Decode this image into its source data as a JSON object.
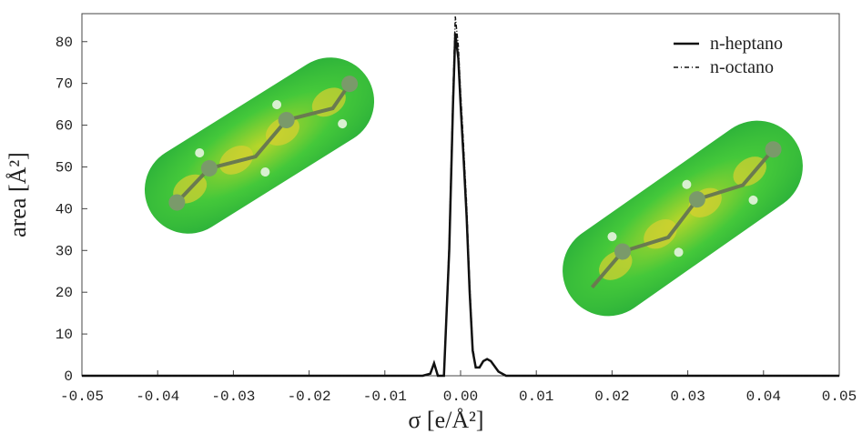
{
  "chart_data": {
    "type": "line",
    "x_label": "σ [e/Å²]",
    "y_label": "area [Å²]",
    "x": [
      -0.05,
      -0.005,
      -0.004,
      -0.0035,
      -0.003,
      -0.0022,
      -0.0015,
      -0.001,
      -0.0007,
      -0.0003,
      0,
      0.0004,
      0.0008,
      0.0012,
      0.0016,
      0.002,
      0.0025,
      0.003,
      0.0035,
      0.004,
      0.005,
      0.006,
      0.05
    ],
    "series": [
      {
        "name": "n-heptano",
        "color": "#111111",
        "linestyle": "solid",
        "values": [
          0,
          0,
          0.5,
          3,
          0,
          0,
          30,
          65,
          82,
          76,
          65,
          52,
          38,
          20,
          6,
          2,
          2,
          3.5,
          4,
          3.5,
          1,
          0,
          0
        ]
      },
      {
        "name": "n-octano",
        "color": "#111111",
        "linestyle": "dashed",
        "values": [
          0,
          0,
          0.5,
          3,
          0,
          0,
          32,
          68,
          86,
          79,
          68,
          55,
          41,
          22,
          7,
          2,
          2,
          3.5,
          4,
          3.5,
          1,
          0,
          0
        ]
      }
    ],
    "xlim": [
      -0.05,
      0.05
    ],
    "xticks": [
      -0.05,
      -0.04,
      -0.03,
      -0.02,
      -0.01,
      {
        "value": 0,
        "label": "0.00"
      },
      0.01,
      0.02,
      0.03,
      0.04,
      0.05
    ],
    "ylim": [
      0,
      86.7
    ],
    "yticks": [
      0,
      10,
      20,
      30,
      40,
      50,
      60,
      70,
      80
    ],
    "legend": "upper right"
  }
}
